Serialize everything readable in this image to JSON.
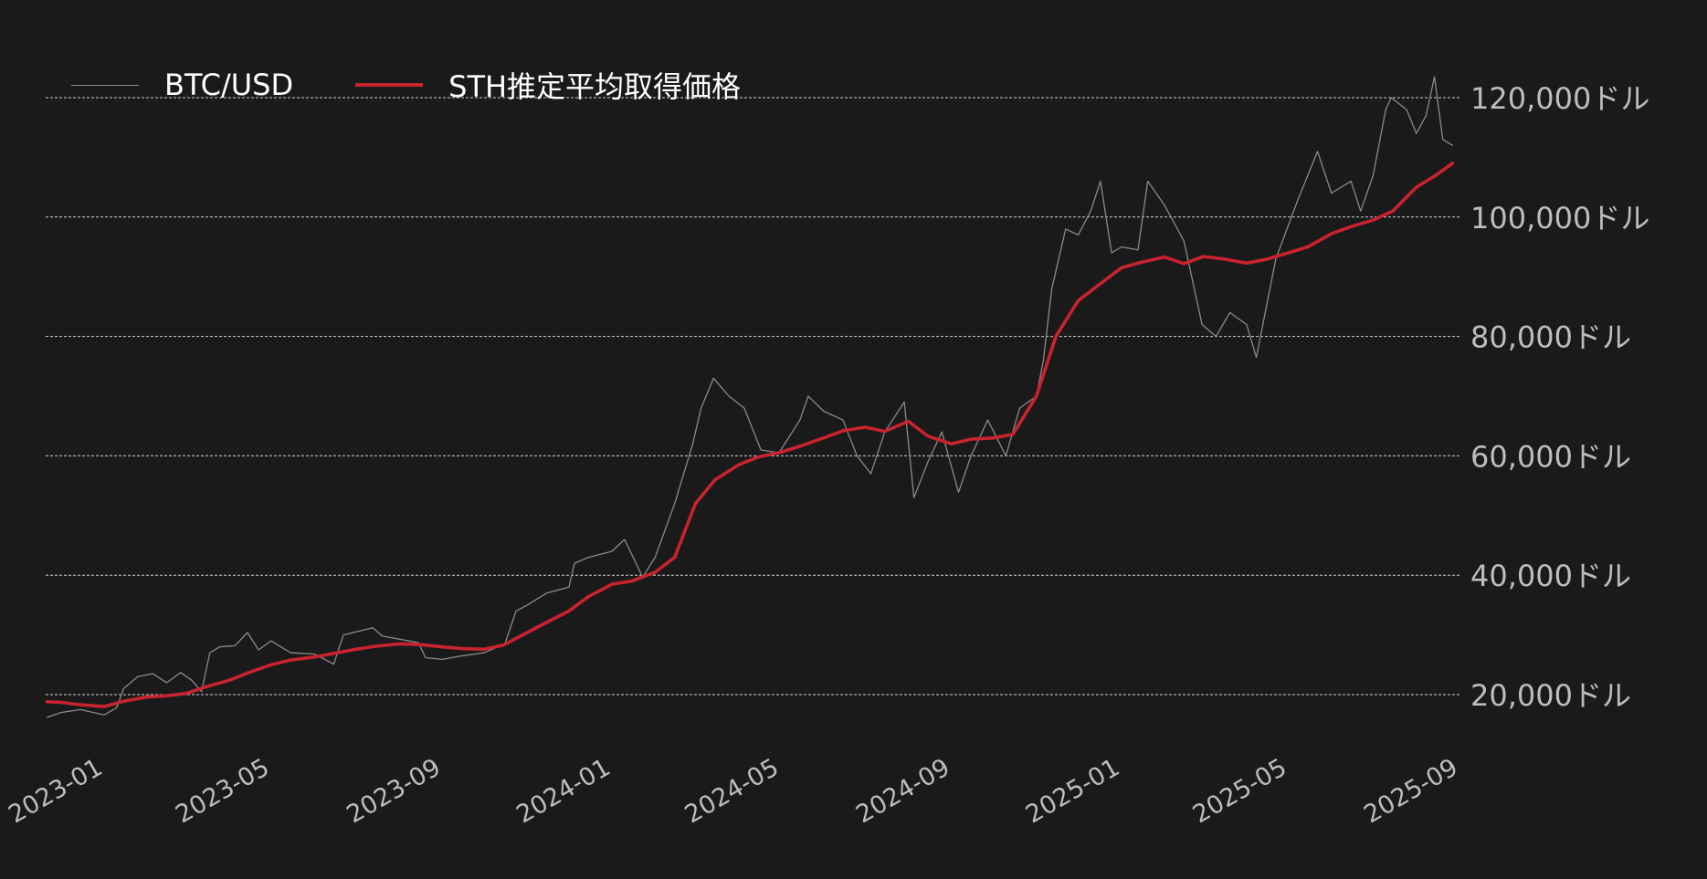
{
  "chart_data": {
    "type": "line",
    "title": "",
    "xlabel": "",
    "ylabel": "",
    "x_ticks": [
      "2023-01",
      "2023-05",
      "2023-09",
      "2024-01",
      "2024-05",
      "2024-09",
      "2025-01",
      "2025-05",
      "2025-09"
    ],
    "y_ticks": [
      "20,000ドル",
      "40,000ドル",
      "60,000ドル",
      "80,000ドル",
      "100,000ドル",
      "120,000ドル"
    ],
    "y_tick_values": [
      20000,
      40000,
      60000,
      80000,
      100000,
      120000
    ],
    "xlim": [
      "2022-11-20",
      "2025-09-01"
    ],
    "ylim": [
      12000,
      124000
    ],
    "grid": "horizontal dashed",
    "legend_position": "top-left",
    "legend": [
      "BTC/USD",
      "STH推定平均取得価格"
    ],
    "colors": {
      "background": "#1a1a1a",
      "btc": "#8a8a8a",
      "sth": "#c8232e",
      "grid": "#cfcfcf",
      "tick_text": "#bdbdbd"
    },
    "series": [
      {
        "name": "BTC/USD",
        "x": [
          "2022-11-21",
          "2022-12-01",
          "2022-12-15",
          "2023-01-01",
          "2023-01-10",
          "2023-01-15",
          "2023-01-25",
          "2023-02-05",
          "2023-02-15",
          "2023-02-25",
          "2023-03-05",
          "2023-03-12",
          "2023-03-18",
          "2023-03-25",
          "2023-04-05",
          "2023-04-14",
          "2023-04-22",
          "2023-05-01",
          "2023-05-15",
          "2023-06-01",
          "2023-06-15",
          "2023-06-22",
          "2023-07-01",
          "2023-07-13",
          "2023-07-20",
          "2023-08-01",
          "2023-08-15",
          "2023-08-20",
          "2023-09-01",
          "2023-09-15",
          "2023-10-01",
          "2023-10-16",
          "2023-10-24",
          "2023-11-01",
          "2023-11-15",
          "2023-12-01",
          "2023-12-05",
          "2023-12-15",
          "2024-01-01",
          "2024-01-10",
          "2024-01-23",
          "2024-02-01",
          "2024-02-15",
          "2024-02-28",
          "2024-03-05",
          "2024-03-14",
          "2024-03-25",
          "2024-04-05",
          "2024-04-17",
          "2024-04-30",
          "2024-05-15",
          "2024-05-21",
          "2024-06-01",
          "2024-06-15",
          "2024-06-25",
          "2024-07-05",
          "2024-07-15",
          "2024-07-29",
          "2024-08-05",
          "2024-08-15",
          "2024-08-25",
          "2024-09-06",
          "2024-09-15",
          "2024-09-27",
          "2024-10-10",
          "2024-10-20",
          "2024-11-01",
          "2024-11-06",
          "2024-11-12",
          "2024-11-22",
          "2024-12-01",
          "2024-12-10",
          "2024-12-17",
          "2024-12-25",
          "2025-01-01",
          "2025-01-13",
          "2025-01-20",
          "2025-02-01",
          "2025-02-15",
          "2025-02-28",
          "2025-03-10",
          "2025-03-20",
          "2025-04-01",
          "2025-04-08",
          "2025-04-22",
          "2025-05-08",
          "2025-05-22",
          "2025-06-01",
          "2025-06-15",
          "2025-06-22",
          "2025-07-01",
          "2025-07-10",
          "2025-07-14",
          "2025-07-25",
          "2025-08-01",
          "2025-08-08",
          "2025-08-14",
          "2025-08-20",
          "2025-08-27"
        ],
        "y": [
          16200,
          17000,
          17500,
          16600,
          17800,
          21000,
          23000,
          23500,
          22000,
          23700,
          22400,
          20500,
          27000,
          28000,
          28200,
          30400,
          27500,
          29000,
          27000,
          26800,
          25100,
          30000,
          30500,
          31200,
          29800,
          29300,
          28700,
          26200,
          25900,
          26500,
          27000,
          28500,
          34000,
          35000,
          37000,
          38000,
          42000,
          43000,
          44000,
          46000,
          39700,
          43000,
          52000,
          62000,
          68000,
          73000,
          70000,
          68000,
          61000,
          60500,
          66000,
          70000,
          67500,
          66000,
          60000,
          57000,
          64000,
          69000,
          53000,
          59000,
          64000,
          53900,
          60000,
          66000,
          60000,
          68000,
          70000,
          76000,
          88000,
          98000,
          97000,
          101000,
          106000,
          94000,
          95000,
          94500,
          106000,
          102000,
          96000,
          82000,
          80000,
          84000,
          82000,
          76500,
          93000,
          103000,
          111000,
          104000,
          106000,
          101000,
          107000,
          118000,
          120000,
          118000,
          114000,
          117000,
          123500,
          113000,
          112000
        ]
      },
      {
        "name": "STH推定平均取得価格",
        "x": [
          "2022-11-21",
          "2022-12-01",
          "2022-12-15",
          "2023-01-01",
          "2023-01-15",
          "2023-02-01",
          "2023-02-15",
          "2023-03-01",
          "2023-03-15",
          "2023-04-01",
          "2023-04-15",
          "2023-05-01",
          "2023-05-15",
          "2023-06-01",
          "2023-06-15",
          "2023-07-01",
          "2023-07-15",
          "2023-08-01",
          "2023-08-15",
          "2023-09-01",
          "2023-09-15",
          "2023-10-01",
          "2023-10-15",
          "2023-11-01",
          "2023-11-15",
          "2023-12-01",
          "2023-12-15",
          "2024-01-01",
          "2024-01-15",
          "2024-02-01",
          "2024-02-15",
          "2024-03-01",
          "2024-03-15",
          "2024-04-01",
          "2024-04-15",
          "2024-05-01",
          "2024-05-15",
          "2024-06-01",
          "2024-06-15",
          "2024-07-01",
          "2024-07-15",
          "2024-08-01",
          "2024-08-15",
          "2024-09-01",
          "2024-09-15",
          "2024-10-01",
          "2024-10-15",
          "2024-11-01",
          "2024-11-15",
          "2024-12-01",
          "2024-12-15",
          "2025-01-01",
          "2025-01-15",
          "2025-02-01",
          "2025-02-15",
          "2025-03-01",
          "2025-03-15",
          "2025-04-01",
          "2025-04-15",
          "2025-05-01",
          "2025-05-15",
          "2025-06-01",
          "2025-06-15",
          "2025-07-01",
          "2025-07-15",
          "2025-08-01",
          "2025-08-15",
          "2025-08-27"
        ],
        "y": [
          18800,
          18700,
          18300,
          18000,
          18900,
          19600,
          19800,
          20200,
          21300,
          22400,
          23700,
          25000,
          25800,
          26300,
          26900,
          27600,
          28100,
          28500,
          28400,
          28000,
          27700,
          27600,
          28300,
          30400,
          32100,
          34000,
          36400,
          38500,
          39000,
          40500,
          43000,
          52000,
          56000,
          58500,
          59800,
          60600,
          61600,
          63000,
          64200,
          64800,
          64100,
          65800,
          63300,
          62000,
          62800,
          63000,
          63600,
          70000,
          80000,
          86000,
          88500,
          91500,
          92400,
          93300,
          92200,
          93400,
          93000,
          92300,
          92900,
          94000,
          95000,
          97200,
          98400,
          99500,
          101000,
          105000,
          107000,
          109000
        ]
      }
    ]
  }
}
